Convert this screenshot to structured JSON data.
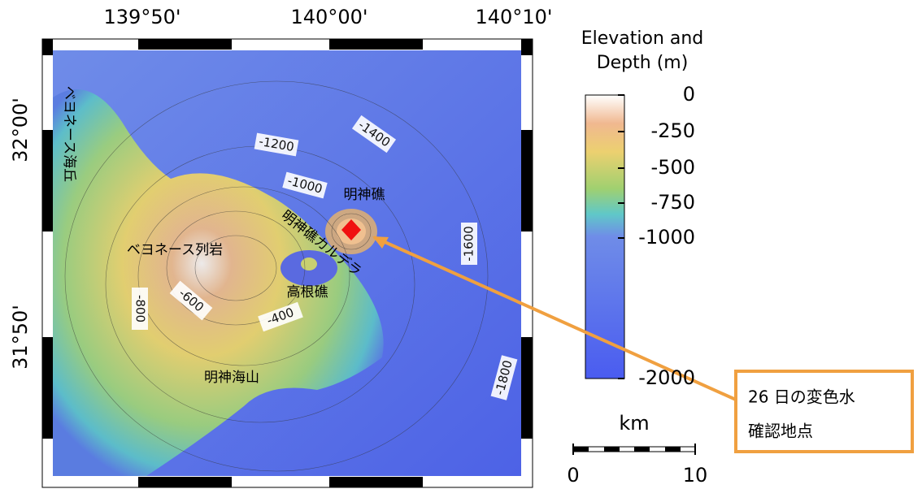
{
  "map": {
    "lon_labels": [
      "139°50'",
      "140°00'",
      "140°10'"
    ],
    "lat_labels": [
      "32°00'",
      "31°50'"
    ],
    "places": [
      "ベヨネース海丘",
      "ベヨネース列岩",
      "明神礁",
      "明神礁カルデラ",
      "高根礁",
      "明神海山"
    ],
    "contours": [
      "-1200",
      "-1400",
      "-1000",
      "-1600",
      "-1800",
      "-800",
      "-600",
      "-400"
    ]
  },
  "colorbar": {
    "title": [
      "Elevation and",
      "Depth (m)"
    ],
    "ticks": [
      0,
      -250,
      -500,
      -750,
      -1000,
      -2000
    ]
  },
  "scale_bar": {
    "unit": "km",
    "ticks": [
      0,
      10
    ]
  },
  "annotation": {
    "lines": [
      "26 日の変色水",
      "確認地点"
    ]
  }
}
